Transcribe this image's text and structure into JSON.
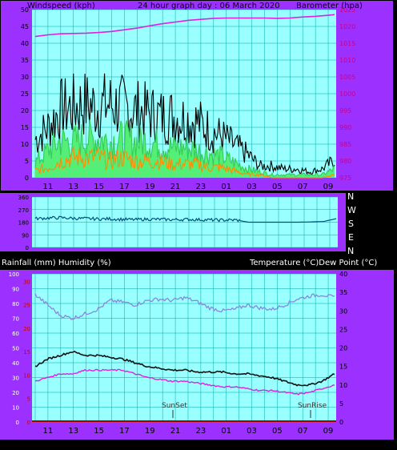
{
  "top_chart": {
    "left_title": "Windspeed (kph)",
    "center_title": "24 hour graph day : 06 March 2020",
    "right_title": "Barometer (hpa)"
  },
  "bottom_chart": {
    "left_title": "Rainfall (mm)  Humidity (%)",
    "right_title": "Temperature (°C)Dew Point (°C)",
    "annotations": [
      "SunSet",
      "SunRise"
    ]
  },
  "direction_labels": [
    "N",
    "W",
    "S",
    "E",
    "N"
  ],
  "x_tick_labels": [
    "11",
    "13",
    "15",
    "17",
    "19",
    "21",
    "23",
    "01",
    "03",
    "05",
    "07",
    "09"
  ],
  "colors": {
    "background": "#000000",
    "frame": "#9b30ff",
    "plot_bg": "#99ffff",
    "grid": "#00a8a8",
    "barometer": "#e020e0",
    "wind_gust": "#000000",
    "wind_mid": "#55ee77",
    "wind_avg": "#ff8c00",
    "direction": "#00507a",
    "humidity": "#8888dd",
    "temperature": "#111111",
    "dew_point": "#e020e0",
    "rainfall": "#aa0000",
    "rainfall_axis_text": "#cc0000"
  },
  "chart_data": [
    {
      "type": "line",
      "title": "24 hour graph day : 06 March 2020",
      "x": [
        "10:00",
        "11:00",
        "12:00",
        "13:00",
        "14:00",
        "15:00",
        "16:00",
        "17:00",
        "18:00",
        "19:00",
        "20:00",
        "21:00",
        "22:00",
        "23:00",
        "00:00",
        "01:00",
        "02:00",
        "03:00",
        "04:00",
        "05:00",
        "06:00",
        "07:00",
        "08:00",
        "09:00",
        "09:30"
      ],
      "x_tick_labels": [
        "11",
        "13",
        "15",
        "17",
        "19",
        "21",
        "23",
        "01",
        "03",
        "05",
        "07",
        "09"
      ],
      "ylabel_left": "Windspeed (kph)",
      "ylim_left": [
        0,
        50
      ],
      "yticks_left": [
        0,
        5,
        10,
        15,
        20,
        25,
        30,
        35,
        40,
        45,
        50
      ],
      "ylabel_right": "Barometer (hpa)",
      "ylim_right": [
        975,
        1025
      ],
      "yticks_right": [
        975,
        980,
        985,
        990,
        995,
        1000,
        1005,
        1010,
        1015,
        1020,
        1025
      ],
      "series": [
        {
          "axis": "right",
          "values": [
            1017,
            1017.5,
            1017.8,
            1017.9,
            1018,
            1018.2,
            1018.5,
            1019,
            1019.5,
            1020.2,
            1020.8,
            1021.3,
            1021.8,
            1022.1,
            1022.4,
            1022.5,
            1022.5,
            1022.5,
            1022.5,
            1022.4,
            1022.5,
            1022.8,
            1023,
            1023.3,
            1023.5
          ]
        },
        {
          "axis": "left",
          "values": [
            13,
            17,
            23,
            24,
            25,
            24,
            25,
            24,
            23,
            22,
            21,
            21,
            20,
            19,
            16,
            14,
            11,
            8,
            4,
            4,
            3,
            3,
            2,
            3,
            6
          ]
        },
        {
          "axis": "left",
          "values": [
            5,
            9,
            12,
            12,
            13,
            13,
            12,
            13,
            12,
            12,
            11,
            10,
            10,
            9,
            8,
            7,
            5,
            3,
            2,
            1,
            1,
            1,
            1,
            1,
            3
          ]
        },
        {
          "axis": "left",
          "values": [
            2,
            3,
            5,
            6,
            6,
            6,
            5,
            6,
            5,
            5,
            5,
            4,
            4,
            4,
            3,
            3,
            2,
            1,
            1,
            0,
            0,
            0,
            0,
            0,
            1
          ]
        }
      ],
      "grid": true
    },
    {
      "type": "line",
      "ylim": [
        0,
        360
      ],
      "y_side_labels": [
        "N",
        "W",
        "S",
        "E",
        "N"
      ],
      "x": [
        "10:00",
        "11:00",
        "12:00",
        "13:00",
        "14:00",
        "15:00",
        "16:00",
        "17:00",
        "18:00",
        "19:00",
        "20:00",
        "21:00",
        "22:00",
        "23:00",
        "00:00",
        "01:00",
        "02:00",
        "03:00",
        "04:00",
        "05:00",
        "06:00",
        "07:00",
        "08:00",
        "09:00",
        "09:30"
      ],
      "x_tick_labels": [
        "11",
        "13",
        "15",
        "17",
        "19",
        "21",
        "23",
        "01",
        "03",
        "05",
        "07",
        "09"
      ],
      "series": [
        {
          "values": [
            205,
            210,
            212,
            208,
            206,
            203,
            204,
            200,
            198,
            202,
            200,
            198,
            200,
            198,
            196,
            195,
            196,
            180,
            180,
            180,
            180,
            180,
            182,
            185,
            205
          ]
        }
      ],
      "grid": true
    },
    {
      "type": "line",
      "title": "",
      "x": [
        "10:00",
        "11:00",
        "12:00",
        "13:00",
        "14:00",
        "15:00",
        "16:00",
        "17:00",
        "18:00",
        "19:00",
        "20:00",
        "21:00",
        "22:00",
        "23:00",
        "00:00",
        "01:00",
        "02:00",
        "03:00",
        "04:00",
        "05:00",
        "06:00",
        "07:00",
        "08:00",
        "09:00",
        "09:30"
      ],
      "x_tick_labels": [
        "11",
        "13",
        "15",
        "17",
        "19",
        "21",
        "23",
        "01",
        "03",
        "05",
        "07",
        "09"
      ],
      "ylabel_left": "Rainfall (mm)  Humidity (%)",
      "ylim_left": [
        0,
        100
      ],
      "yticks_left": [
        0,
        10,
        20,
        30,
        40,
        50,
        60,
        70,
        80,
        90,
        100
      ],
      "yticks_left_rain": [
        0,
        5,
        10,
        15,
        20,
        25,
        30
      ],
      "ylabel_right": "Temperature (°C)Dew Point (°C)",
      "ylim_right": [
        0,
        40
      ],
      "yticks_right": [
        0,
        5,
        10,
        15,
        20,
        25,
        30,
        35,
        40
      ],
      "series": [
        {
          "axis": "left",
          "values": [
            86,
            79,
            72,
            70,
            73,
            76,
            82,
            81,
            79,
            82,
            83,
            82,
            84,
            81,
            77,
            75,
            76,
            79,
            77,
            76,
            79,
            83,
            85,
            86,
            84
          ]
        },
        {
          "axis": "right",
          "values": [
            15,
            17,
            18,
            19,
            18,
            18,
            17.5,
            17,
            16,
            15,
            14.5,
            14,
            14,
            13.5,
            13.5,
            13.5,
            13,
            13,
            12.5,
            12,
            11,
            10,
            10,
            11,
            13
          ]
        },
        {
          "axis": "right",
          "values": [
            11,
            12,
            13,
            13,
            14,
            14,
            14,
            14,
            13,
            12,
            11.5,
            11,
            11,
            10.5,
            10,
            9.5,
            9.5,
            9,
            8.5,
            8.5,
            8,
            7.5,
            8,
            9,
            10
          ]
        },
        {
          "axis": "left",
          "values": [
            0,
            0,
            0,
            0,
            0,
            0,
            0,
            0,
            0,
            0,
            0,
            0,
            0,
            0,
            0,
            0,
            0,
            0,
            0,
            0,
            0,
            0,
            0,
            0,
            0
          ]
        }
      ],
      "grid": true
    }
  ]
}
